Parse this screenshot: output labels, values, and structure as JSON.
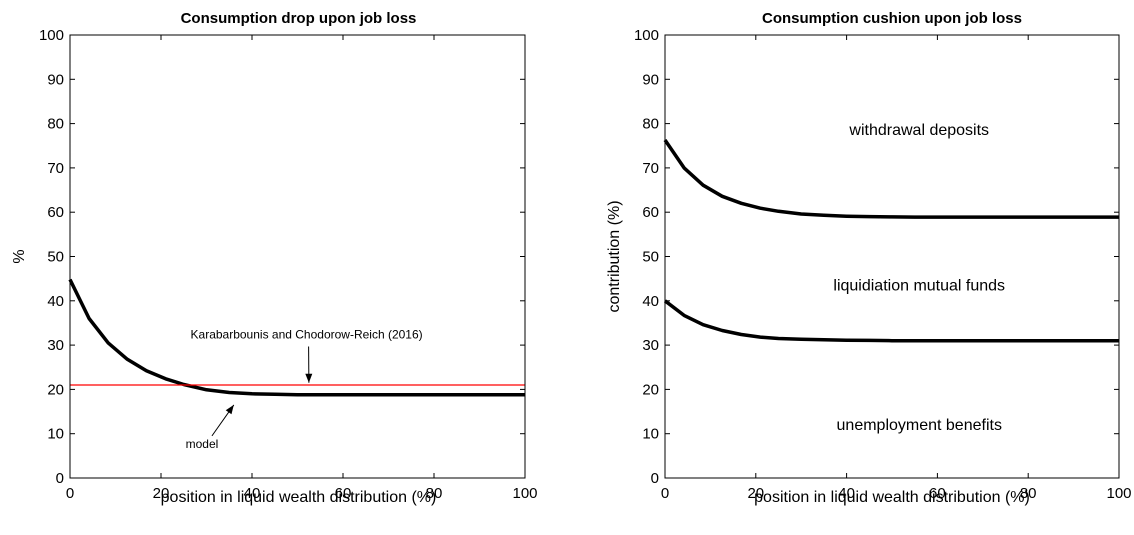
{
  "chart_data": [
    {
      "type": "line",
      "title": "Consumption drop upon job loss",
      "xlabel": "position in liquid wealth distribution (%)",
      "ylabel": "%",
      "xlim": [
        0,
        100
      ],
      "ylim": [
        0,
        100
      ],
      "xticks": [
        0,
        20,
        40,
        60,
        80,
        100
      ],
      "yticks": [
        0,
        10,
        20,
        30,
        40,
        50,
        60,
        70,
        80,
        90,
        100
      ],
      "grid": false,
      "series": [
        {
          "color": "#000000",
          "x": [
            0,
            4.2,
            8.4,
            12.6,
            16.8,
            21,
            25,
            30,
            35,
            40,
            45,
            50,
            55,
            60,
            70,
            80,
            90,
            100
          ],
          "y": [
            44.8,
            36,
            30.5,
            26.8,
            24.2,
            22.4,
            21.1,
            19.9,
            19.3,
            19.0,
            18.9,
            18.8,
            18.8,
            18.8,
            18.8,
            18.8,
            18.8,
            18.8
          ]
        },
        {
          "color": "#ff0000",
          "x": [
            0,
            100
          ],
          "y": [
            21,
            21
          ]
        }
      ],
      "annotations": [
        {
          "text": "Karabarbounis and Chodorow-Reich (2016)",
          "x": 52,
          "y": 31.5,
          "arrow_to": [
            52.5,
            21.5
          ]
        },
        {
          "text": "model",
          "x": 29,
          "y": 6.8,
          "arrow_to": [
            36,
            16.5
          ]
        }
      ]
    },
    {
      "type": "line",
      "title": "Consumption cushion upon job loss",
      "xlabel": "position in liquid wealth distribution (%)",
      "ylabel": "contribution (%)",
      "xlim": [
        0,
        100
      ],
      "ylim": [
        0,
        100
      ],
      "xticks": [
        0,
        20,
        40,
        60,
        80,
        100
      ],
      "yticks": [
        0,
        10,
        20,
        30,
        40,
        50,
        60,
        70,
        80,
        90,
        100
      ],
      "grid": false,
      "series": [
        {
          "color": "#000000",
          "x": [
            0,
            4.2,
            8.4,
            12.6,
            16.8,
            21,
            25,
            30,
            35,
            40,
            45,
            50,
            55,
            60,
            70,
            80,
            90,
            100
          ],
          "y": [
            76.3,
            70,
            66.1,
            63.6,
            62,
            60.9,
            60.2,
            59.6,
            59.3,
            59.1,
            59.0,
            58.95,
            58.9,
            58.9,
            58.9,
            58.9,
            58.9,
            58.9
          ]
        },
        {
          "color": "#000000",
          "x": [
            0,
            4.2,
            8.4,
            12.6,
            16.8,
            21,
            25,
            30,
            35,
            40,
            45,
            50,
            55,
            60,
            70,
            80,
            90,
            100
          ],
          "y": [
            40,
            36.7,
            34.6,
            33.3,
            32.4,
            31.8,
            31.5,
            31.3,
            31.2,
            31.1,
            31.05,
            31,
            31,
            31,
            31,
            31,
            31,
            31
          ]
        }
      ],
      "region_labels": [
        {
          "text": "withdrawal deposits",
          "x": 56,
          "y": 78.5
        },
        {
          "text": "liquidiation mutual funds",
          "x": 56,
          "y": 43.5
        },
        {
          "text": "unemployment benefits",
          "x": 56,
          "y": 12
        }
      ]
    }
  ]
}
